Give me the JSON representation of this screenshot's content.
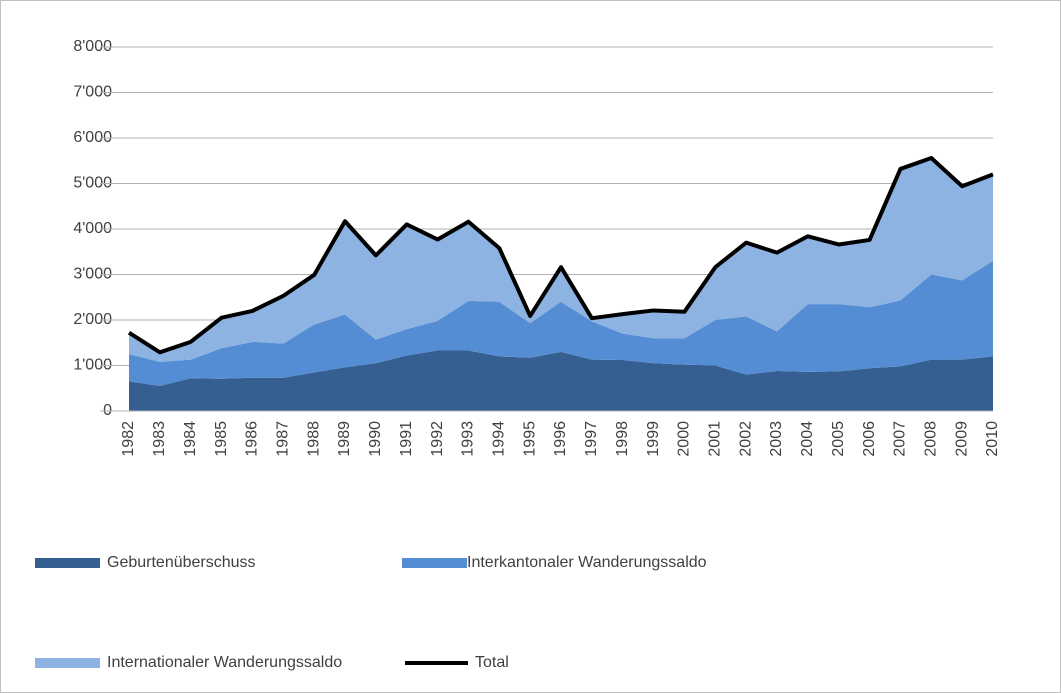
{
  "chart_data": {
    "type": "area",
    "categories": [
      "1982",
      "1983",
      "1984",
      "1985",
      "1986",
      "1987",
      "1988",
      "1989",
      "1990",
      "1991",
      "1992",
      "1993",
      "1994",
      "1995",
      "1996",
      "1997",
      "1998",
      "1999",
      "2000",
      "2001",
      "2002",
      "2003",
      "2004",
      "2005",
      "2006",
      "2007",
      "2008",
      "2009",
      "2010"
    ],
    "series": [
      {
        "name": "Geburtenüberschuss",
        "color": "#355f91",
        "values": [
          650,
          550,
          720,
          710,
          730,
          730,
          850,
          960,
          1050,
          1220,
          1330,
          1330,
          1200,
          1170,
          1300,
          1130,
          1120,
          1050,
          1020,
          1000,
          800,
          880,
          860,
          870,
          940,
          980,
          1130,
          1130,
          1200
        ]
      },
      {
        "name": "Interkantonaler Wanderungssaldo",
        "color": "#548dd4",
        "values": [
          600,
          530,
          410,
          670,
          790,
          750,
          1050,
          1160,
          520,
          580,
          650,
          1090,
          1200,
          760,
          1100,
          840,
          580,
          550,
          580,
          1000,
          1280,
          870,
          1490,
          1480,
          1340,
          1450,
          1870,
          1740,
          2100
        ]
      },
      {
        "name": "Internationaler Wanderungssaldo",
        "color": "#8db3e2",
        "values": [
          470,
          210,
          390,
          670,
          680,
          1050,
          1090,
          2050,
          1850,
          2300,
          1790,
          1740,
          1180,
          160,
          760,
          70,
          430,
          610,
          580,
          1160,
          1620,
          1730,
          1490,
          1310,
          1480,
          2890,
          2560,
          2070,
          1900
        ]
      },
      {
        "name": "Total",
        "color": "#000000",
        "type": "line",
        "values": [
          1720,
          1290,
          1520,
          2050,
          2200,
          2530,
          2990,
          4170,
          3420,
          4100,
          3770,
          4160,
          3580,
          2090,
          3160,
          2040,
          2130,
          2210,
          2180,
          3160,
          3700,
          3480,
          3840,
          3660,
          3760,
          5320,
          5560,
          4940,
          5200
        ]
      }
    ],
    "ylim": [
      0,
      8000
    ],
    "yticks": [
      0,
      {
        "value": 1000,
        "label": "1'000"
      },
      {
        "value": 2000,
        "label": "2'000"
      },
      {
        "value": 3000,
        "label": "3'000"
      },
      {
        "value": 4000,
        "label": "4'000"
      },
      {
        "value": 5000,
        "label": "5'000"
      },
      {
        "value": 6000,
        "label": "6'000"
      },
      {
        "value": 7000,
        "label": "7'000"
      },
      {
        "value": 8000,
        "label": "8'000"
      }
    ],
    "grid": true
  }
}
